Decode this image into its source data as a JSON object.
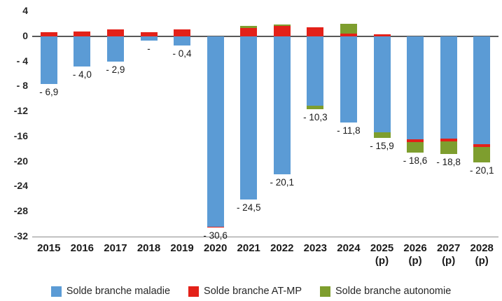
{
  "chart_data": {
    "type": "bar",
    "stacked": true,
    "title": "",
    "categories": [
      "2015",
      "2016",
      "2017",
      "2018",
      "2019",
      "2020",
      "2021",
      "2022",
      "2023",
      "2024",
      "2025",
      "2026",
      "2027",
      "2028"
    ],
    "category_suffixes": [
      "",
      "",
      "",
      "",
      "",
      "",
      "",
      "",
      "",
      "",
      "(p)",
      "(p)",
      "(p)",
      "(p)"
    ],
    "series": [
      {
        "name": "Solde branche maladie",
        "color": "#5B9BD5",
        "values": [
          -7.6,
          -4.8,
          -4.0,
          -0.7,
          -1.5,
          -30.4,
          -26.1,
          -22.0,
          -11.1,
          -13.8,
          -15.3,
          -16.5,
          -16.3,
          -17.2
        ]
      },
      {
        "name": "Solde branche AT-MP",
        "color": "#E32119",
        "values": [
          0.7,
          0.8,
          1.1,
          0.7,
          1.1,
          -0.2,
          1.3,
          1.6,
          1.4,
          0.4,
          0.3,
          -0.4,
          -0.5,
          -0.5
        ]
      },
      {
        "name": "Solde branche autonomie",
        "color": "#7E9E2E",
        "values": [
          0,
          0,
          0,
          0,
          0,
          0,
          0.3,
          0.3,
          -0.6,
          1.6,
          -0.9,
          -1.7,
          -2.0,
          -2.4
        ]
      }
    ],
    "bar_total_labels": [
      "- 6,9",
      "- 4,0",
      "- 2,9",
      "-",
      "- 0,4",
      "- 30,6",
      "- 24,5",
      "- 20,1",
      "- 10,3",
      "- 11,8",
      "- 15,9",
      "- 18,6",
      "- 18,8",
      "- 20,1"
    ],
    "y_ticks": [
      4,
      0,
      -4,
      -8,
      -12,
      -16,
      -20,
      -24,
      -28,
      -32
    ],
    "y_tick_labels": [
      "4",
      "0",
      "- 4",
      "- 8",
      "-12",
      "-16",
      "-20",
      "-24",
      "-28",
      "-32"
    ],
    "ylim": [
      -32,
      4
    ],
    "grid": false,
    "legend_position": "bottom",
    "xlabel": "",
    "ylabel": ""
  }
}
